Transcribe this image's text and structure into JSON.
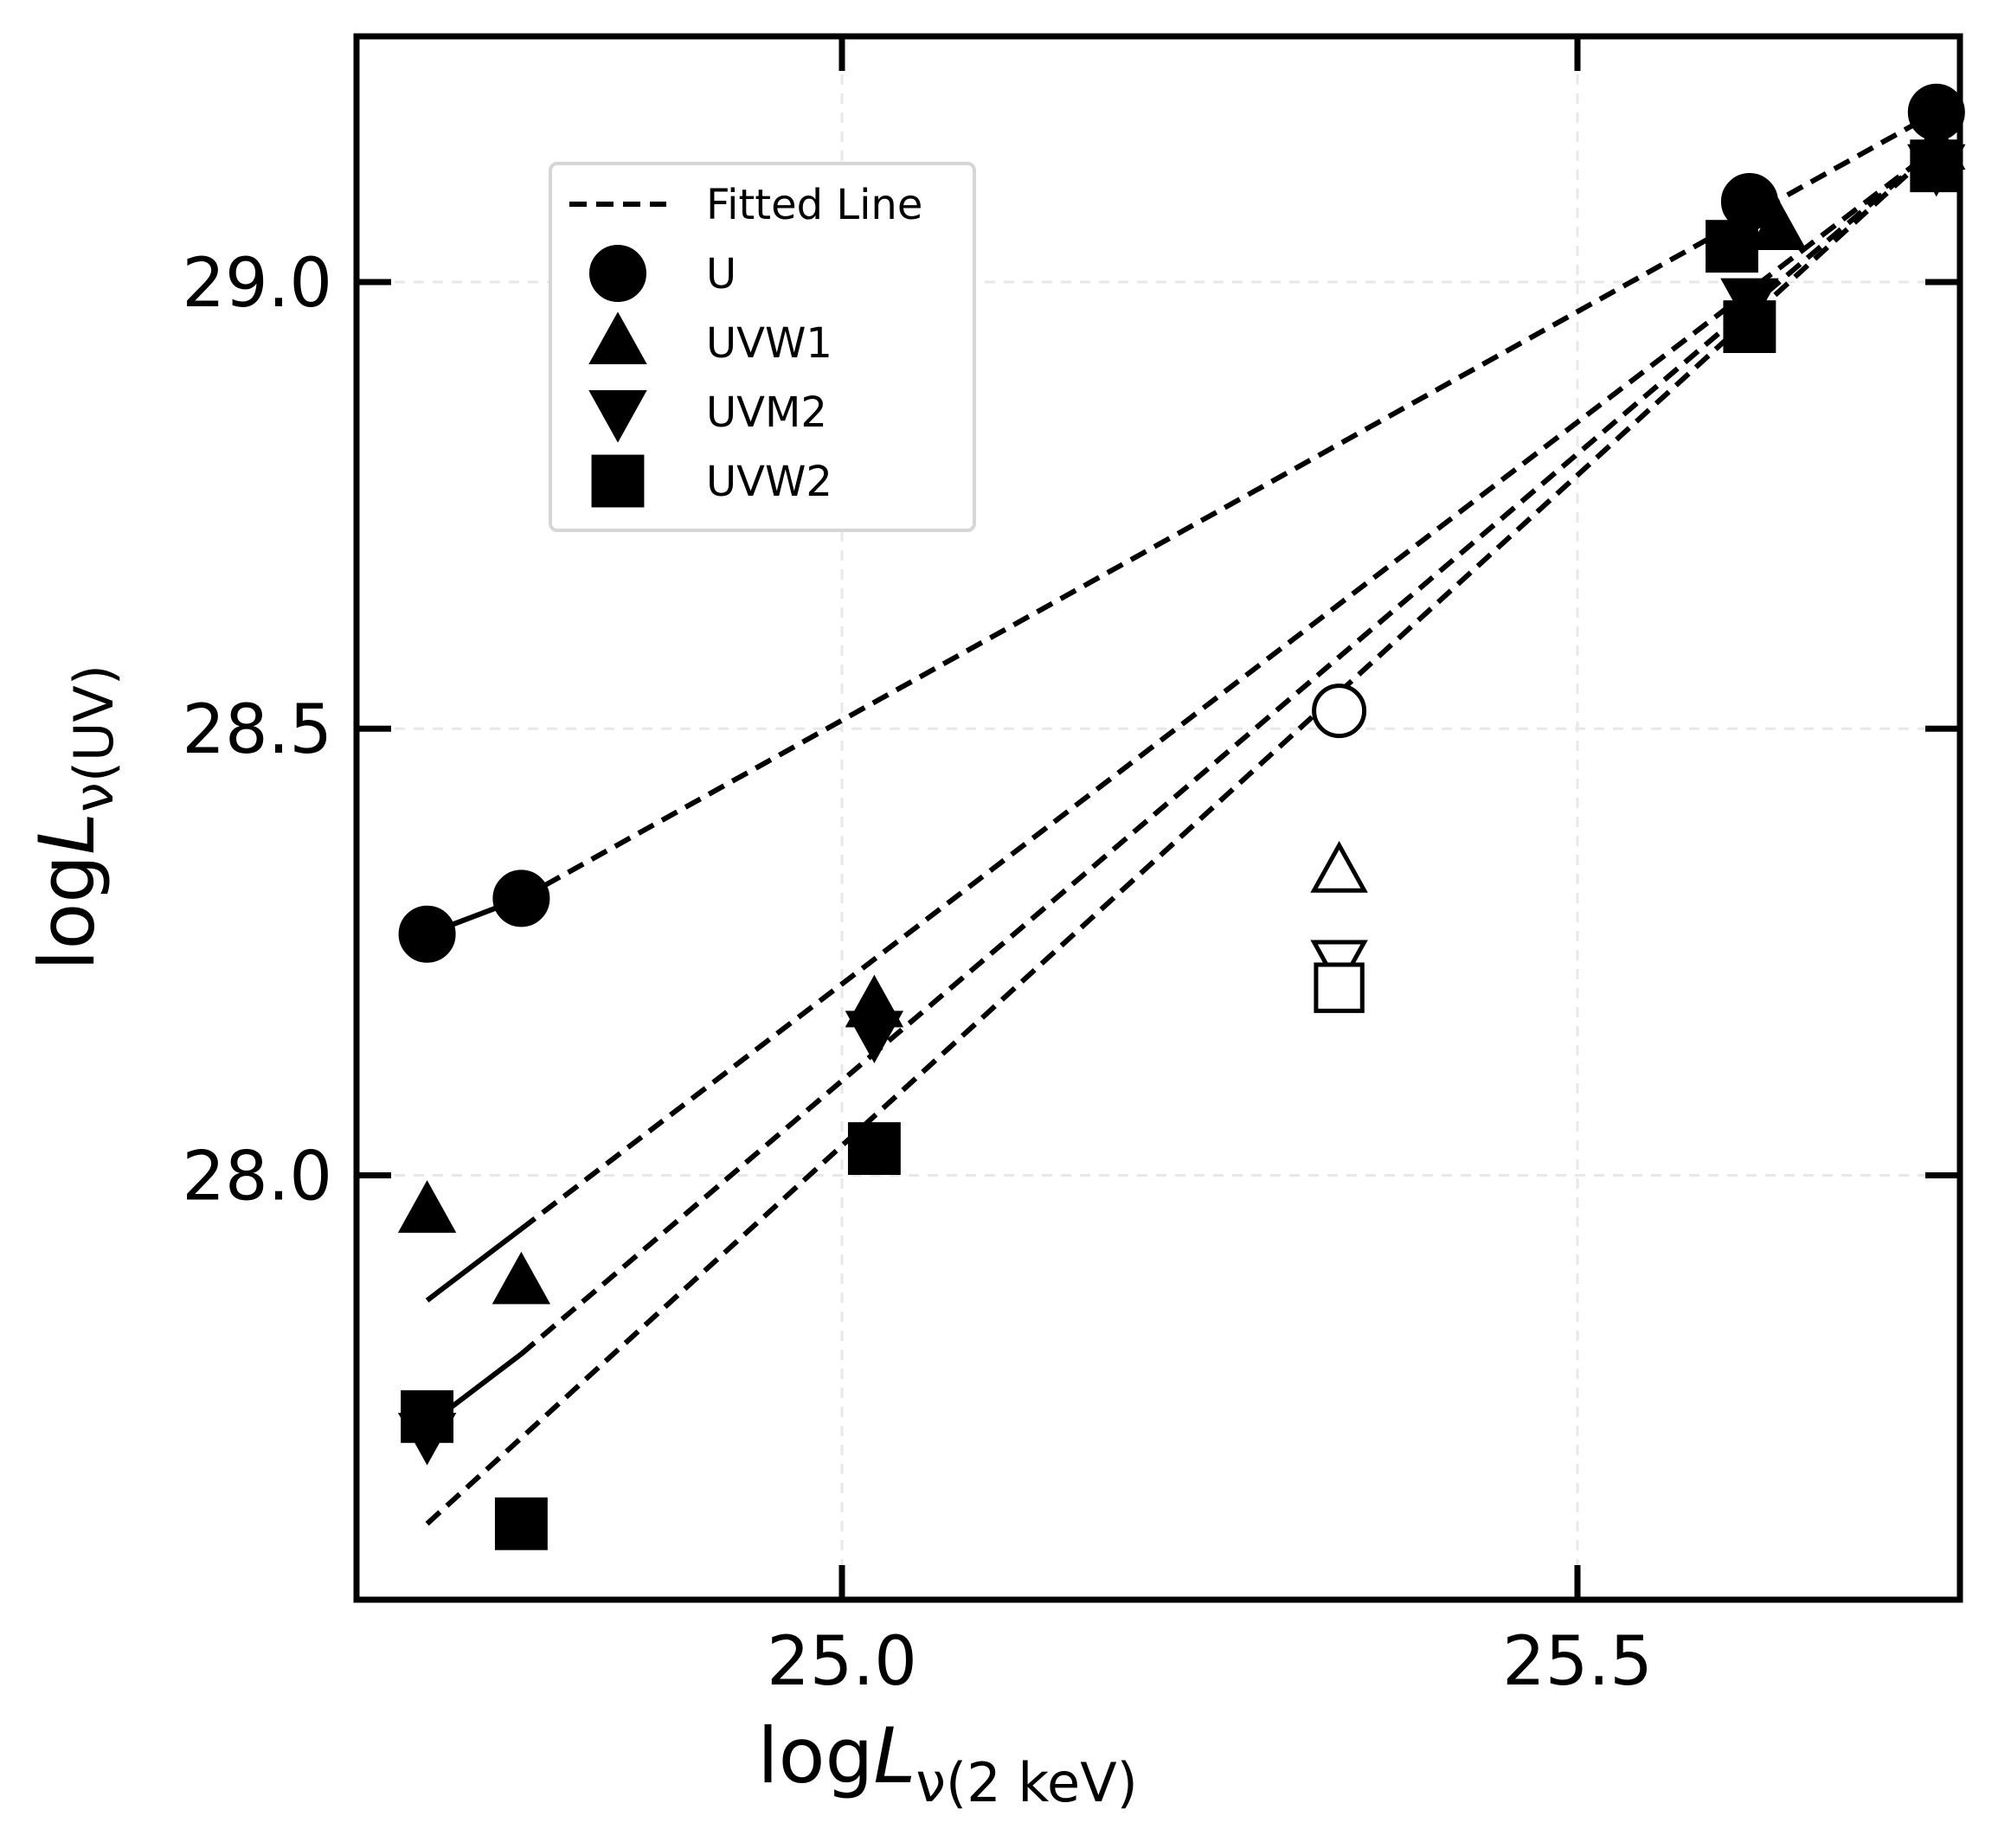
{
  "chart_data": {
    "type": "scatter",
    "xlabel": {
      "base": "log",
      "symbol": "L",
      "subscript": "ν(2 keV)"
    },
    "ylabel": {
      "base": "log",
      "symbol": "L",
      "subscript": "ν(UV)"
    },
    "xlim": [
      24.67,
      25.76
    ],
    "ylim": [
      27.525,
      29.275
    ],
    "xticks": [
      25.0,
      25.5
    ],
    "xtick_labels": [
      "25.0",
      "25.5"
    ],
    "yticks": [
      28.0,
      28.5,
      29.0
    ],
    "ytick_labels": [
      "28.0",
      "28.5",
      "29.0"
    ],
    "grid": true,
    "legend": {
      "placement": "upper-left",
      "entries": [
        {
          "label": "Fitted Line",
          "marker": "dashed-line"
        },
        {
          "label": "U",
          "marker": "circle"
        },
        {
          "label": "UVW1",
          "marker": "triangle-up"
        },
        {
          "label": "UVM2",
          "marker": "triangle-down"
        },
        {
          "label": "UVW2",
          "marker": "square"
        }
      ]
    },
    "series": [
      {
        "name": "U",
        "marker": "circle",
        "points": [
          [
            24.718,
            28.27
          ],
          [
            24.782,
            28.31
          ],
          [
            25.617,
            29.09
          ],
          [
            25.744,
            29.19
          ]
        ],
        "solid_segment": [
          [
            24.718,
            28.27
          ],
          [
            24.782,
            28.31
          ]
        ],
        "fit": [
          [
            24.782,
            28.31
          ],
          [
            25.744,
            29.19
          ]
        ]
      },
      {
        "name": "UVW1",
        "marker": "triangle-up",
        "points": [
          [
            24.718,
            27.96
          ],
          [
            24.782,
            27.88
          ],
          [
            25.022,
            28.19
          ],
          [
            25.636,
            29.06
          ],
          [
            25.744,
            29.15
          ]
        ],
        "solid_segment": [
          [
            24.718,
            27.86
          ],
          [
            24.782,
            27.94
          ]
        ],
        "fit": [
          [
            24.782,
            27.94
          ],
          [
            25.744,
            29.15
          ]
        ]
      },
      {
        "name": "UVM2",
        "marker": "triangle-down",
        "points": [
          [
            24.718,
            27.71
          ],
          [
            25.022,
            28.16
          ],
          [
            25.617,
            28.98
          ],
          [
            25.744,
            29.13
          ]
        ],
        "solid_segment": [
          [
            24.718,
            27.72
          ],
          [
            24.782,
            27.8
          ]
        ],
        "fit": [
          [
            24.782,
            27.8
          ],
          [
            25.744,
            29.15
          ]
        ]
      },
      {
        "name": "UVW2",
        "marker": "square",
        "points": [
          [
            24.718,
            27.73
          ],
          [
            24.782,
            27.61
          ],
          [
            25.022,
            28.03
          ],
          [
            25.605,
            29.04
          ],
          [
            25.617,
            28.95
          ],
          [
            25.744,
            29.13
          ]
        ],
        "fit": [
          [
            24.718,
            27.61
          ],
          [
            25.744,
            29.15
          ]
        ]
      },
      {
        "name": "",
        "marker": "open",
        "points": [
          {
            "shape": "circle",
            "x": 25.338,
            "y": 28.52
          },
          {
            "shape": "triangle-up",
            "x": 25.338,
            "y": 28.34
          },
          {
            "shape": "triangle-down",
            "x": 25.338,
            "y": 28.24
          },
          {
            "shape": "square",
            "x": 25.338,
            "y": 28.21
          }
        ]
      }
    ]
  }
}
